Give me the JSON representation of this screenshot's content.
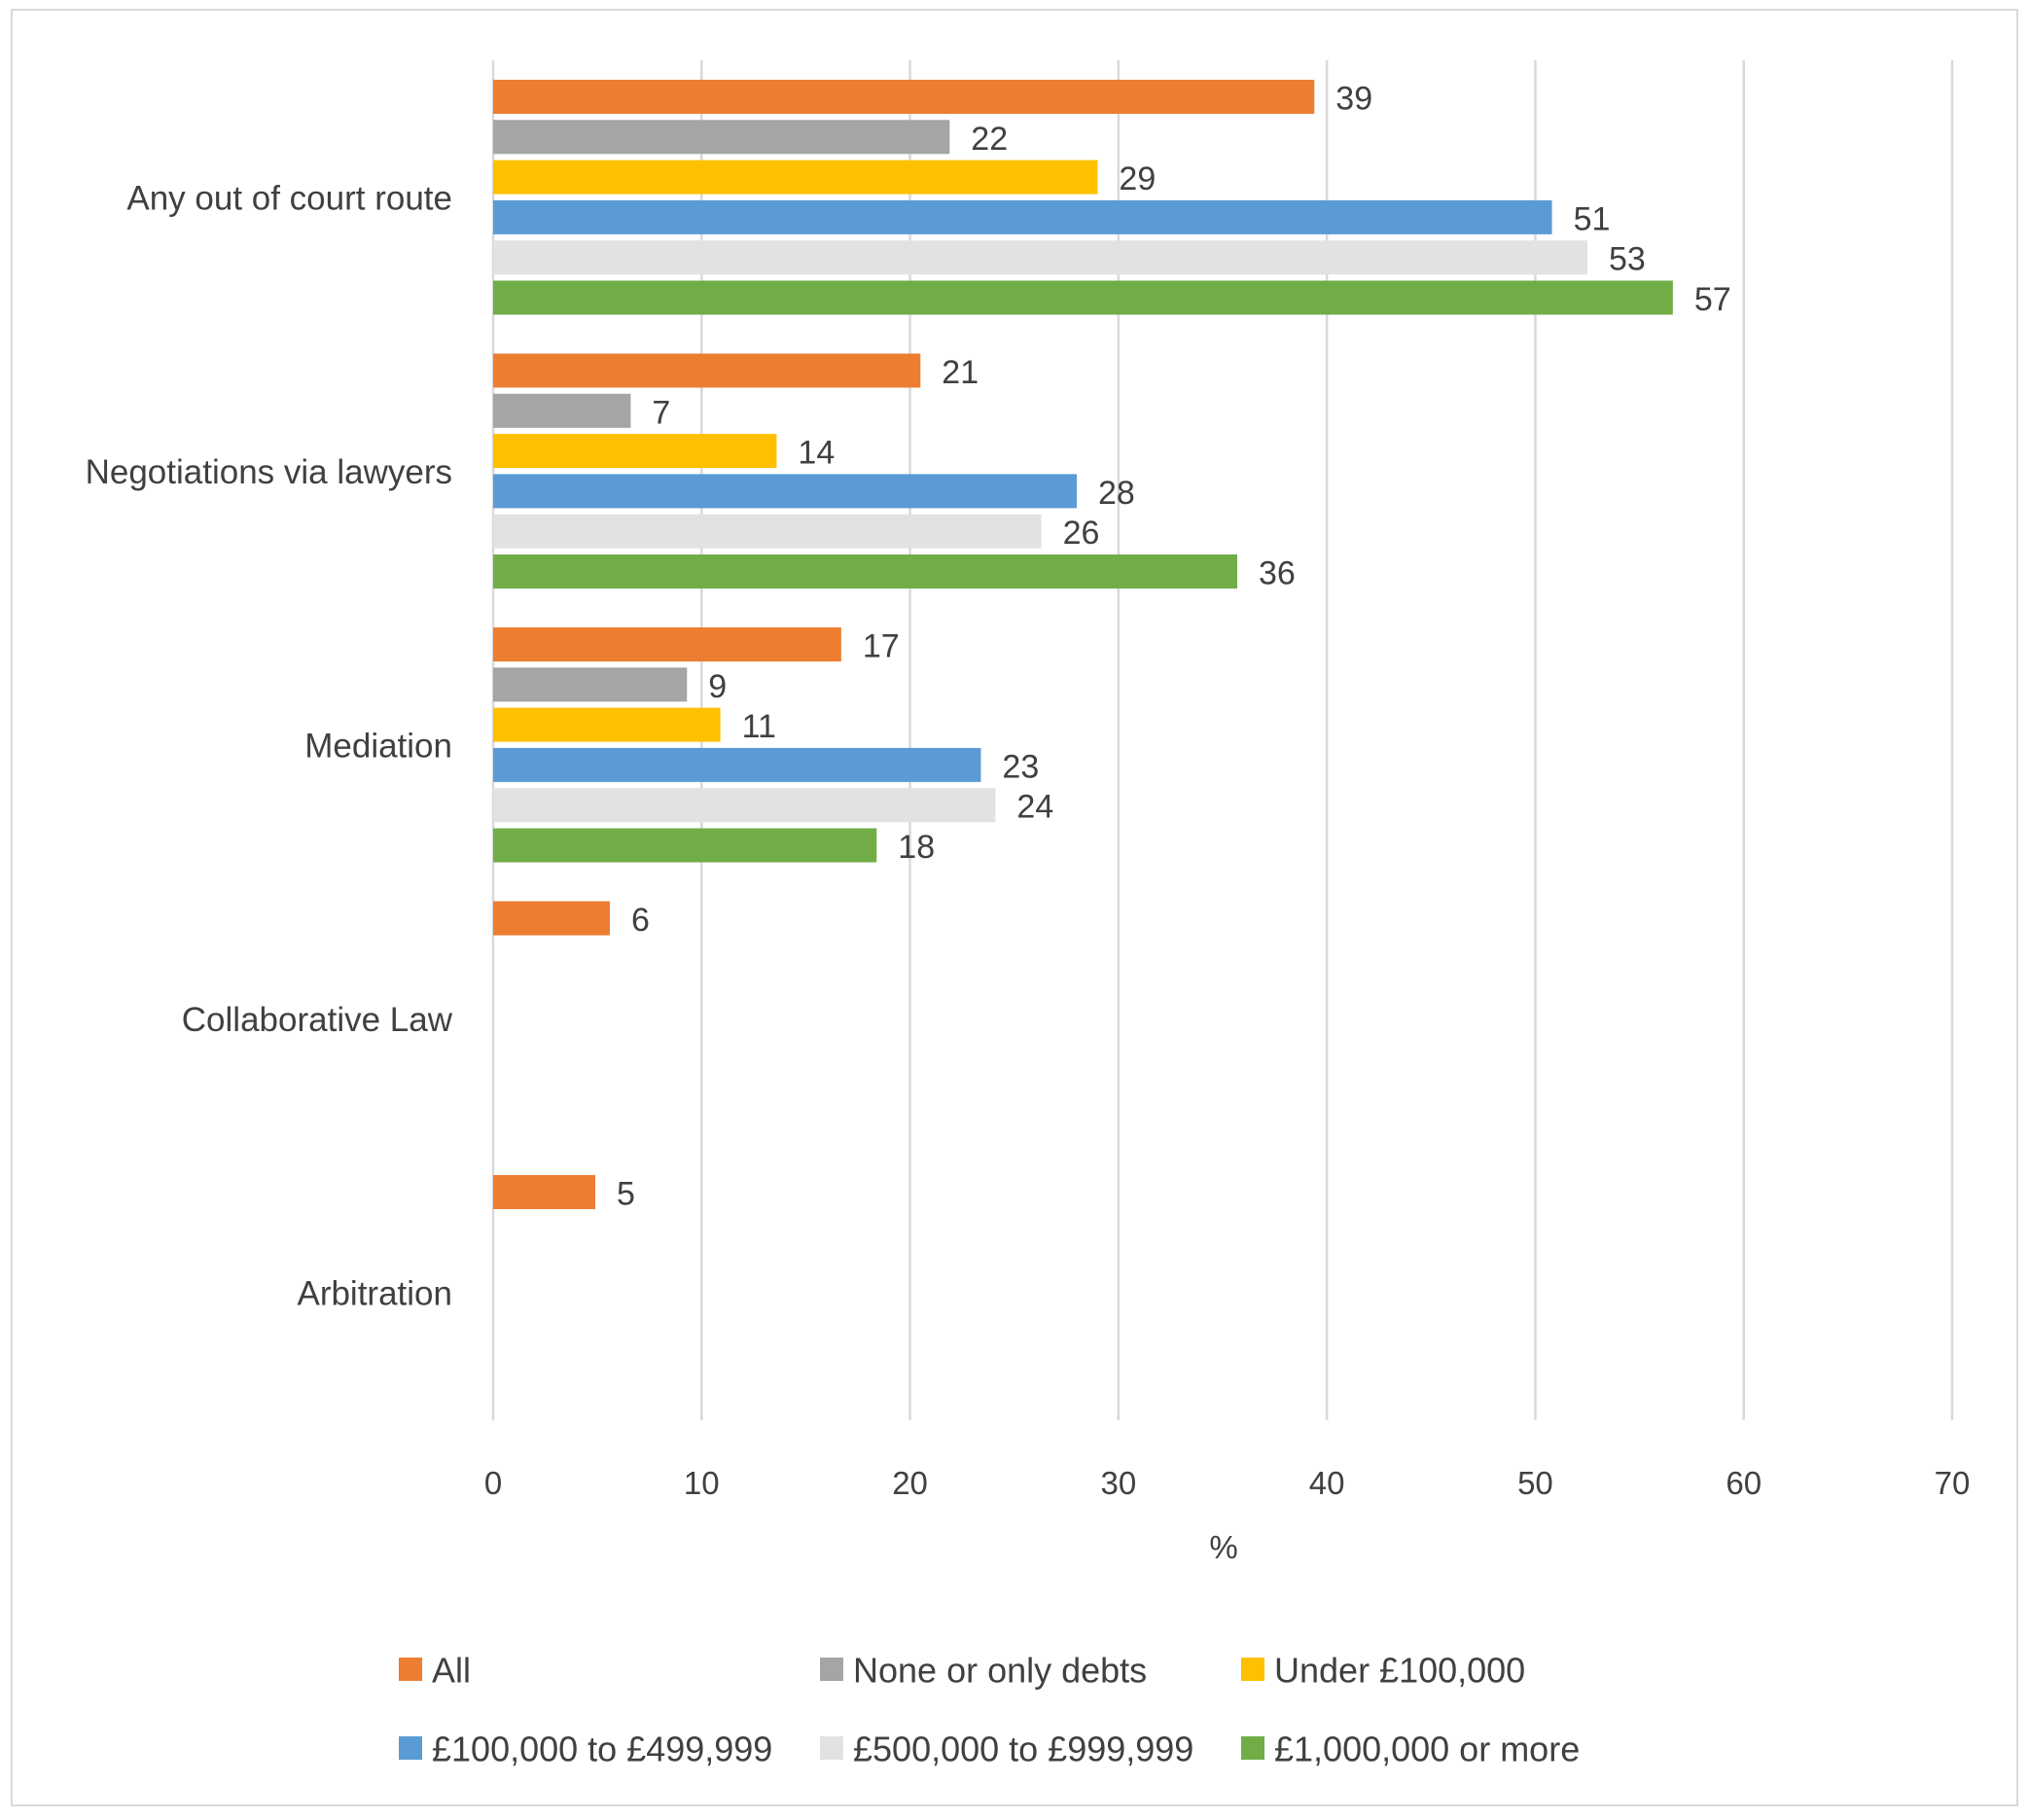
{
  "chart_data": {
    "type": "bar",
    "orientation": "horizontal",
    "title": "",
    "xlabel": "%",
    "ylabel": "",
    "xlim": [
      0,
      70
    ],
    "x_ticks": [
      0,
      10,
      20,
      30,
      40,
      50,
      60,
      70
    ],
    "grid": true,
    "legend_position": "bottom",
    "categories": [
      "Any out of court route",
      "Negotiations via lawyers",
      "Mediation",
      "Collaborative Law",
      "Arbitration"
    ],
    "series": [
      {
        "name": "All",
        "color": "#ed7d31",
        "values": [
          39,
          21,
          17,
          6,
          5
        ]
      },
      {
        "name": "None or only debts",
        "color": "#a5a5a5",
        "values": [
          22,
          7,
          9,
          null,
          null
        ]
      },
      {
        "name": "Under £100,000",
        "color": "#ffc000",
        "values": [
          29,
          14,
          11,
          null,
          null
        ]
      },
      {
        "name": "£100,000 to £499,999",
        "color": "#5b9bd5",
        "values": [
          51,
          28,
          23,
          null,
          null
        ]
      },
      {
        "name": "£500,000 to £999,999",
        "color": "#e2e2e2",
        "values": [
          53,
          26,
          24,
          null,
          null
        ]
      },
      {
        "name": "£1,000,000 or more",
        "color": "#70ad47",
        "values": [
          57,
          36,
          18,
          null,
          null
        ]
      }
    ],
    "bar_positions": [
      [
        39.4,
        21.9,
        29.0,
        50.8,
        52.5,
        56.6
      ],
      [
        20.5,
        6.6,
        13.6,
        28.0,
        26.3,
        35.7
      ],
      [
        16.7,
        9.3,
        10.9,
        23.4,
        24.1,
        18.4
      ],
      [
        5.6,
        null,
        null,
        null,
        null,
        null
      ],
      [
        4.9,
        null,
        null,
        null,
        null,
        null
      ]
    ]
  }
}
